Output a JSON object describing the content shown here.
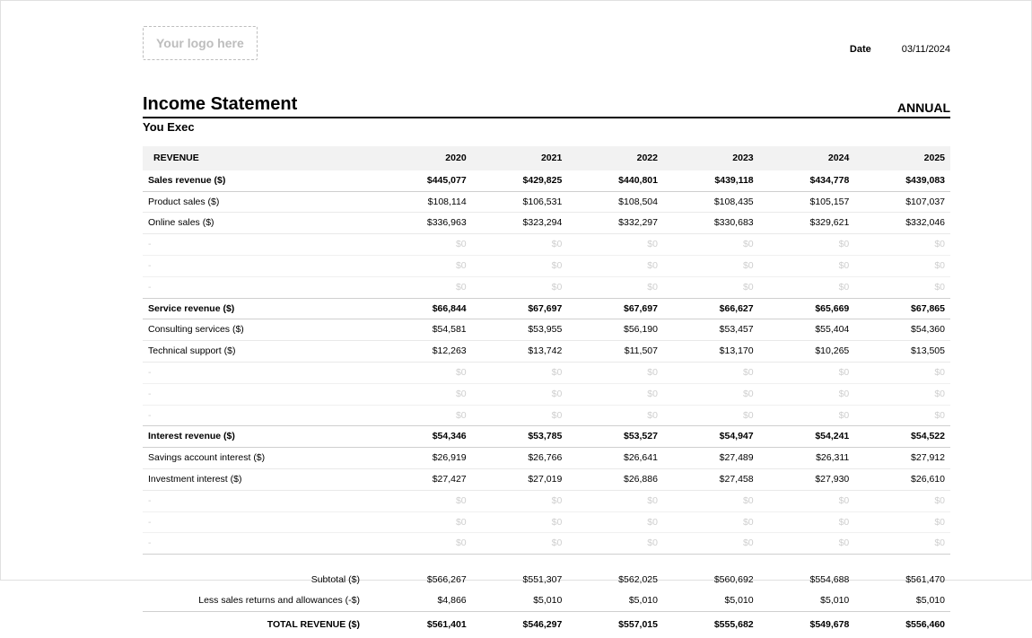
{
  "logo_placeholder": "Your logo here",
  "date_label": "Date",
  "date_value": "03/11/2024",
  "title": "Income Statement",
  "period": "ANNUAL",
  "company": "You Exec",
  "columns": [
    "REVENUE",
    "2020",
    "2021",
    "2022",
    "2023",
    "2024",
    "2025"
  ],
  "empty_label": "-",
  "empty_value": "$0",
  "colors": {
    "header_bg": "#f2f2f2",
    "border_light": "#e9e9e9",
    "border_med": "#cfcfcf",
    "placeholder": "#bdbdbd",
    "empty_text": "#cfcfcf",
    "text": "#000000",
    "page_border": "#e0e0e0"
  },
  "sections": [
    {
      "label": "Sales revenue ($)",
      "totals": [
        "$445,077",
        "$429,825",
        "$440,801",
        "$439,118",
        "$434,778",
        "$439,083"
      ],
      "rows": [
        {
          "label": "Product sales ($)",
          "values": [
            "$108,114",
            "$106,531",
            "$108,504",
            "$108,435",
            "$105,157",
            "$107,037"
          ]
        },
        {
          "label": "Online sales ($)",
          "values": [
            "$336,963",
            "$323,294",
            "$332,297",
            "$330,683",
            "$329,621",
            "$332,046"
          ]
        }
      ],
      "empties": 3
    },
    {
      "label": "Service revenue ($)",
      "totals": [
        "$66,844",
        "$67,697",
        "$67,697",
        "$66,627",
        "$65,669",
        "$67,865"
      ],
      "rows": [
        {
          "label": "Consulting services ($)",
          "values": [
            "$54,581",
            "$53,955",
            "$56,190",
            "$53,457",
            "$55,404",
            "$54,360"
          ]
        },
        {
          "label": "Technical support ($)",
          "values": [
            "$12,263",
            "$13,742",
            "$11,507",
            "$13,170",
            "$10,265",
            "$13,505"
          ]
        }
      ],
      "empties": 3
    },
    {
      "label": "Interest revenue ($)",
      "totals": [
        "$54,346",
        "$53,785",
        "$53,527",
        "$54,947",
        "$54,241",
        "$54,522"
      ],
      "rows": [
        {
          "label": "Savings account interest ($)",
          "values": [
            "$26,919",
            "$26,766",
            "$26,641",
            "$27,489",
            "$26,311",
            "$27,912"
          ]
        },
        {
          "label": "Investment interest ($)",
          "values": [
            "$27,427",
            "$27,019",
            "$26,886",
            "$27,458",
            "$27,930",
            "$26,610"
          ]
        }
      ],
      "empties": 3
    }
  ],
  "subtotal": {
    "label": "Subtotal ($)",
    "values": [
      "$566,267",
      "$551,307",
      "$562,025",
      "$560,692",
      "$554,688",
      "$561,470"
    ]
  },
  "less": {
    "label": "Less sales returns and allowances (-$)",
    "values": [
      "$4,866",
      "$5,010",
      "$5,010",
      "$5,010",
      "$5,010",
      "$5,010"
    ]
  },
  "total": {
    "label": "TOTAL REVENUE ($)",
    "values": [
      "$561,401",
      "$546,297",
      "$557,015",
      "$555,682",
      "$549,678",
      "$556,460"
    ]
  }
}
